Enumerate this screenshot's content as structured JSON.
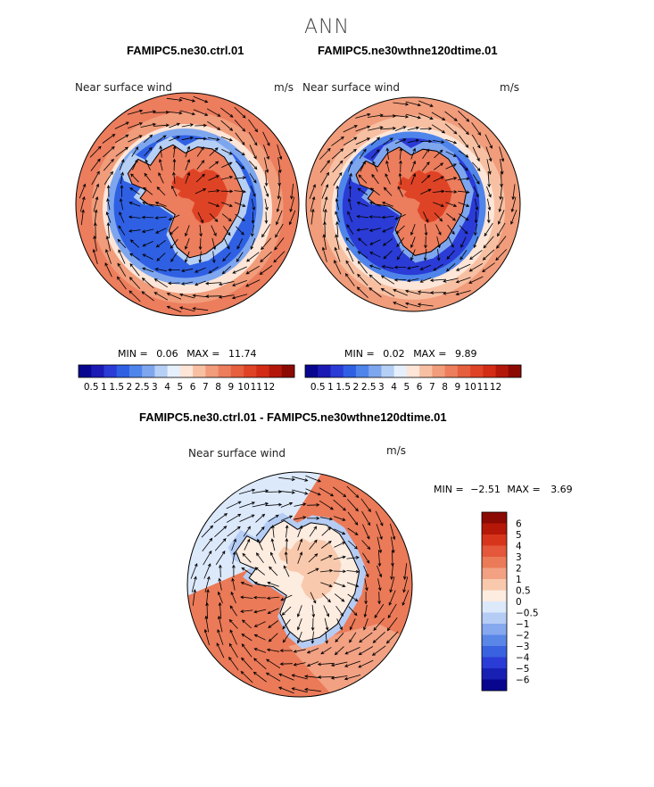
{
  "figure": {
    "season_title": "ANN"
  },
  "colors": {
    "abs_scale": [
      "#08068f",
      "#1c1ab4",
      "#2a3bd6",
      "#2f60e3",
      "#4f85ea",
      "#7ea6ef",
      "#b6cff5",
      "#e6f0fc",
      "#fde6d8",
      "#f8c0a3",
      "#f19c7b",
      "#ec7d5d",
      "#e65f3f",
      "#df4326",
      "#d22c16",
      "#b31709",
      "#8c0a04"
    ],
    "diff_scale": [
      "#08068f",
      "#1820b4",
      "#2a3bd6",
      "#3a62e0",
      "#5a86e8",
      "#86a8ef",
      "#b5cdf5",
      "#dce9fb",
      "#fdece0",
      "#f9c9ad",
      "#f2a183",
      "#eb7a58",
      "#e4573a",
      "#d6351c",
      "#b51708",
      "#8c0a04"
    ],
    "land_outline": "#000000"
  },
  "panels": [
    {
      "title": "FAMIPC5.ne30.ctrl.01",
      "variable": "Near surface wind",
      "units": "m/s",
      "min_label": "MIN =",
      "min_value": "0.06",
      "max_label": "MAX =",
      "max_value": "11.74",
      "colorbar_labels": [
        "0.5",
        "1",
        "1.5",
        "2",
        "2.5",
        "3",
        "4",
        "5",
        "6",
        "7",
        "8",
        "9",
        "10",
        "11",
        "12"
      ]
    },
    {
      "title": "FAMIPC5.ne30wthne120dtime.01",
      "variable": "Near surface wind",
      "units": "m/s",
      "min_label": "MIN =",
      "min_value": "0.02",
      "max_label": "MAX =",
      "max_value": "9.89",
      "colorbar_labels": [
        "0.5",
        "1",
        "1.5",
        "2",
        "2.5",
        "3",
        "4",
        "5",
        "6",
        "7",
        "8",
        "9",
        "10",
        "11",
        "12"
      ]
    },
    {
      "title": "FAMIPC5.ne30.ctrl.01 - FAMIPC5.ne30wthne120dtime.01",
      "variable": "Near surface wind",
      "units": "m/s",
      "min_label": "MIN =",
      "min_value": "−2.51",
      "max_label": "MAX =",
      "max_value": "3.69",
      "colorbar_labels": [
        "6",
        "5",
        "4",
        "3",
        "2",
        "1",
        "0.5",
        "0",
        "−0.5",
        "−1",
        "−2",
        "−3",
        "−4",
        "−5",
        "−6"
      ]
    }
  ],
  "chart_data": [
    {
      "type": "heatmap",
      "title": "FAMIPC5.ne30.ctrl.01",
      "projection": "south polar stereographic",
      "field": "Near surface wind speed with wind vectors",
      "units": "m/s",
      "min": 0.06,
      "max": 11.74,
      "contour_levels": [
        0.5,
        1,
        1.5,
        2,
        2.5,
        3,
        4,
        5,
        6,
        7,
        8,
        9,
        10,
        11,
        12
      ]
    },
    {
      "type": "heatmap",
      "title": "FAMIPC5.ne30wthne120dtime.01",
      "projection": "south polar stereographic",
      "field": "Near surface wind speed with wind vectors",
      "units": "m/s",
      "min": 0.02,
      "max": 9.89,
      "contour_levels": [
        0.5,
        1,
        1.5,
        2,
        2.5,
        3,
        4,
        5,
        6,
        7,
        8,
        9,
        10,
        11,
        12
      ]
    },
    {
      "type": "heatmap",
      "title": "FAMIPC5.ne30.ctrl.01 - FAMIPC5.ne30wthne120dtime.01",
      "projection": "south polar stereographic",
      "field": "Near surface wind speed difference with wind vectors",
      "units": "m/s",
      "min": -2.51,
      "max": 3.69,
      "contour_levels": [
        -6,
        -5,
        -4,
        -3,
        -2,
        -1,
        -0.5,
        0,
        0.5,
        1,
        2,
        3,
        4,
        5,
        6
      ]
    }
  ]
}
